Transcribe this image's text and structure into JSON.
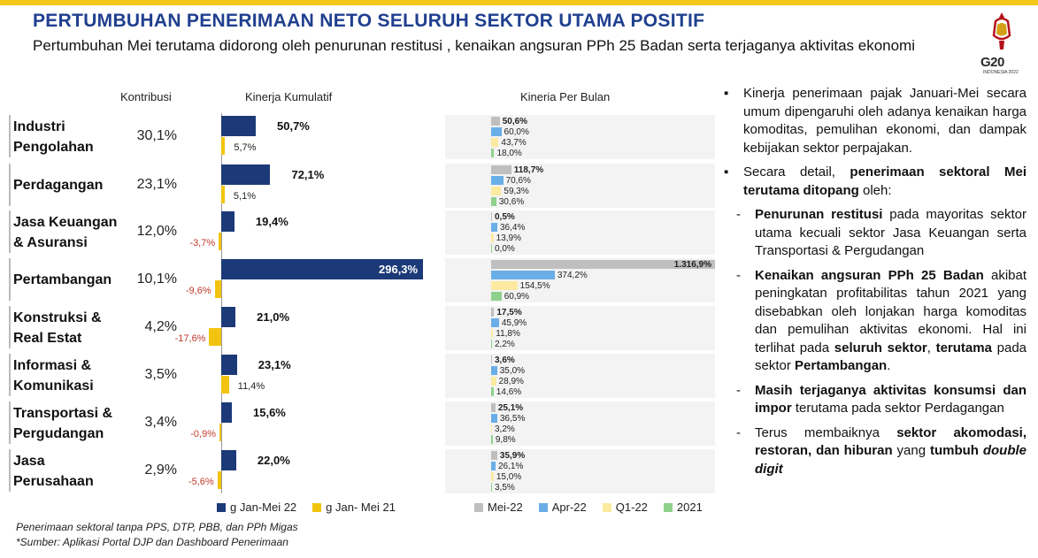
{
  "header": {
    "title": "PERTUMBUHAN PENERIMAAN NETO SELURUH SEKTOR UTAMA POSITIF",
    "subtitle": "Pertumbuhan Mei terutama didorong oleh penurunan restitusi , kenaikan angsuran PPh 25 Badan serta terjaganya aktivitas ekonomi",
    "logo_text": "G20",
    "logo_sub": "INDONESIA 2022"
  },
  "columns": {
    "kontribusi": "Kontribusi",
    "kumulatif": "Kinerja Kumulatif",
    "bulanan": "Kineria Per Bulan"
  },
  "colors": {
    "jan_mei_22": "#1c3a78",
    "jan_mei_21": "#f2c40f",
    "mei_22": "#bfbfbf",
    "apr_22": "#6aaee8",
    "q1_22": "#fbeaa0",
    "y2021": "#8fd18c"
  },
  "chart_data": [
    {
      "type": "bar",
      "title": "Kinerja Kumulatif",
      "categories": [
        "Industri Pengolahan",
        "Perdagangan",
        "Jasa Keuangan & Asuransi",
        "Pertambangan",
        "Konstruksi & Real Estat",
        "Informasi & Komunikasi",
        "Transportasi & Pergudangan",
        "Jasa Perusahaan"
      ],
      "series": [
        {
          "name": "g Jan-Mei 22",
          "values": [
            50.7,
            72.1,
            19.4,
            296.3,
            21.0,
            23.1,
            15.6,
            22.0
          ],
          "labels": [
            "50,7%",
            "72,1%",
            "19,4%",
            "296,3%",
            "21,0%",
            "23,1%",
            "15,6%",
            "22,0%"
          ]
        },
        {
          "name": "g Jan- Mei 21",
          "values": [
            5.7,
            5.1,
            -3.7,
            -9.6,
            -17.6,
            11.4,
            -0.9,
            -5.6
          ],
          "labels": [
            "5,7%",
            "5,1%",
            "-3,7%",
            "-9,6%",
            "-17,6%",
            "11,4%",
            "-0,9%",
            "-5,6%"
          ]
        }
      ]
    },
    {
      "type": "bar",
      "title": "Kineria Per Bulan",
      "categories": [
        "Industri Pengolahan",
        "Perdagangan",
        "Jasa Keuangan & Asuransi",
        "Pertambangan",
        "Konstruksi & Real Estat",
        "Informasi & Komunikasi",
        "Transportasi & Pergudangan",
        "Jasa Perusahaan"
      ],
      "series": [
        {
          "name": "Mei-22",
          "values": [
            50.6,
            118.7,
            0.5,
            1316.9,
            17.5,
            3.6,
            25.1,
            35.9
          ],
          "labels": [
            "50,6%",
            "118,7%",
            "0,5%",
            "1.316,9%",
            "17,5%",
            "3,6%",
            "25,1%",
            "35,9%"
          ]
        },
        {
          "name": "Apr-22",
          "values": [
            60.0,
            70.6,
            36.4,
            374.2,
            45.9,
            35.0,
            36.5,
            26.1
          ],
          "labels": [
            "60,0%",
            "70,6%",
            "36,4%",
            "374,2%",
            "45,9%",
            "35,0%",
            "36,5%",
            "26,1%"
          ]
        },
        {
          "name": "Q1-22",
          "values": [
            43.7,
            59.3,
            13.9,
            154.5,
            11.8,
            28.9,
            3.2,
            15.0
          ],
          "labels": [
            "43,7%",
            "59,3%",
            "13,9%",
            "154,5%",
            "11,8%",
            "28,9%",
            "3,2%",
            "15,0%"
          ]
        },
        {
          "name": "2021",
          "values": [
            18.0,
            30.6,
            0.0,
            60.9,
            2.2,
            14.6,
            9.8,
            3.5
          ],
          "labels": [
            "18,0%",
            "30,6%",
            "0,0%",
            "60,9%",
            "2,2%",
            "14,6%",
            "9,8%",
            "3,5%"
          ]
        }
      ]
    }
  ],
  "sectors": [
    {
      "name": "Industri\nPengolahan",
      "contrib": "30,1%"
    },
    {
      "name": "Perdagangan",
      "contrib": "23,1%"
    },
    {
      "name": "Jasa Keuangan\n& Asuransi",
      "contrib": "12,0%"
    },
    {
      "name": "Pertambangan",
      "contrib": "10,1%"
    },
    {
      "name": "Konstruksi &\nReal Estat",
      "contrib": "4,2%"
    },
    {
      "name": "Informasi &\nKomunikasi",
      "contrib": "3,5%"
    },
    {
      "name": "Transportasi &\nPergudangan",
      "contrib": "3,4%"
    },
    {
      "name": "Jasa\nPerusahaan",
      "contrib": "2,9%"
    }
  ],
  "legend_cum": [
    "g Jan-Mei 22",
    "g Jan- Mei 21"
  ],
  "legend_month": [
    "Mei-22",
    "Apr-22",
    "Q1-22",
    "2021"
  ],
  "footnotes": {
    "note1": "Penerimaan sektoral tanpa PPS, DTP, PBB, dan PPh Migas",
    "note2": "*Sumber: Aplikasi Portal DJP dan Dashboard Penerimaan"
  },
  "right_text": {
    "b1": "Kinerja penerimaan pajak Januari-Mei secara umum dipengaruhi oleh adanya kenaikan harga komoditas, pemulihan ekonomi, dan dampak kebijakan sektor perpajakan.",
    "b2_pre": "Secara detail, ",
    "b2_bold": "penerimaan sektoral Mei terutama ditopang",
    "b2_post": " oleh:",
    "d1_bold": "Penurunan restitusi",
    "d1_rest": " pada mayoritas sektor utama kecuali sektor Jasa Keuangan serta Transportasi & Pergudangan",
    "d2_bold": "Kenaikan angsuran PPh 25 Badan",
    "d2_rest": " akibat peningkatan profitabilitas tahun 2021 yang disebabkan oleh lonjakan harga komoditas dan pemulihan aktivitas ekonomi. Hal ini terlihat pada ",
    "d2_bold2": "seluruh sektor",
    "d2_mid": ", ",
    "d2_bold3": "terutama",
    "d2_mid2": " pada sektor ",
    "d2_bold4": "Pertambangan",
    "d2_end": ".",
    "d3_bold": "Masih terjaganya aktivitas konsumsi dan impor",
    "d3_rest": " terutama pada sektor Perdagangan",
    "d4_pre": "Terus membaiknya ",
    "d4_bold": "sektor akomodasi, restoran, dan hiburan",
    "d4_mid": " yang ",
    "d4_bold2": "tumbuh",
    "d4_bi": "double digit",
    "bullet": "▪",
    "dash": "-"
  }
}
